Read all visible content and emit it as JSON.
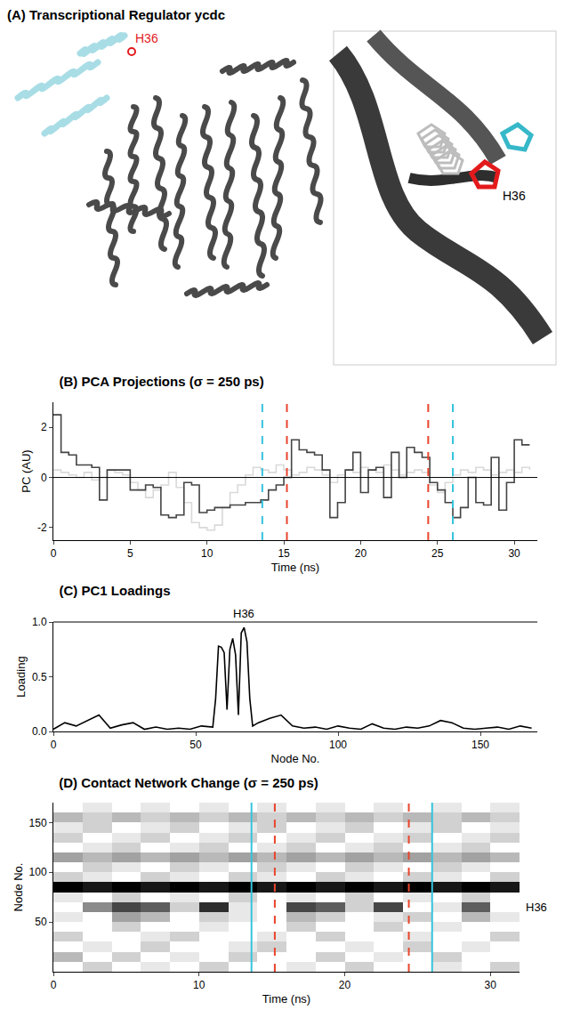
{
  "panel_a": {
    "title": "(A) Transcriptional Regulator ycdc",
    "labels": [
      "H36",
      "H36"
    ]
  },
  "chart_data": [
    {
      "type": "line",
      "title": "(B) PCA Projections (σ = 250 ps)",
      "x_label": "Time (ns)",
      "y_label": "PC (AU)",
      "xlim": [
        0,
        31.5
      ],
      "ylim": [
        -2.5,
        3
      ],
      "xticks": [
        0,
        5,
        10,
        15,
        20,
        25,
        30
      ],
      "yticks": [
        -2,
        0,
        2
      ],
      "x": [
        0,
        0.5,
        1,
        1.5,
        2,
        2.5,
        3,
        3.5,
        4,
        4.5,
        5,
        5.5,
        6,
        6.5,
        7,
        7.5,
        8,
        8.5,
        9,
        9.5,
        10,
        10.5,
        11,
        11.5,
        12,
        12.5,
        13,
        13.5,
        14,
        14.5,
        15,
        15.5,
        16,
        16.5,
        17,
        17.5,
        18,
        18.5,
        19,
        19.5,
        20,
        20.5,
        21,
        21.5,
        22,
        22.5,
        23,
        23.5,
        24,
        24.5,
        25,
        25.5,
        26,
        26.5,
        27,
        27.5,
        28,
        28.5,
        29,
        29.5,
        30,
        30.5,
        31
      ],
      "series": [
        {
          "color": "#d9d9d9",
          "line_style": "solid",
          "values": [
            0.3,
            0.2,
            0.1,
            0,
            0.2,
            -0.1,
            0,
            0.3,
            0.2,
            0.1,
            -0.2,
            -0.5,
            -0.8,
            -0.5,
            -0.3,
            0.2,
            -0.4,
            -1.0,
            -1.8,
            -2.0,
            -2.1,
            -1.9,
            -1.2,
            -0.6,
            -0.3,
            0.1,
            0.4,
            0.3,
            0.2,
            0.5,
            0.3,
            0.1,
            0.2,
            0.4,
            0.3,
            0.1,
            -0.2,
            0.1,
            0.3,
            0.2,
            0.4,
            0.3,
            0.2,
            0.5,
            0.3,
            0.1,
            0.2,
            0.3,
            0.2,
            -0.3,
            -0.6,
            -0.2,
            0.1,
            0.3,
            0.2,
            0.4,
            0.3,
            0.1,
            0.2,
            0.3,
            0.2,
            0.4,
            0.3
          ]
        },
        {
          "color": "#444444",
          "line_style": "solid",
          "values": [
            2.5,
            1.0,
            0.9,
            0.5,
            0.5,
            0.4,
            -0.9,
            0.3,
            0.3,
            0.3,
            -0.5,
            -0.5,
            -0.3,
            -0.4,
            -1.5,
            -1.6,
            -1.5,
            -0.2,
            -0.3,
            -1.4,
            -1.3,
            -1.2,
            -1.2,
            -1.1,
            -1.1,
            -1.0,
            -1.0,
            -0.9,
            -0.5,
            -0.3,
            0.0,
            1.5,
            1.1,
            1.0,
            0.9,
            0.3,
            -1.6,
            -1.0,
            0.3,
            1.0,
            -0.6,
            0.3,
            0.4,
            -0.8,
            1.0,
            0.0,
            1.2,
            1.0,
            0.8,
            -0.2,
            -0.5,
            -1.0,
            -1.6,
            -1.2,
            0.0,
            -1.0,
            -1.1,
            0.8,
            -1.3,
            -0.2,
            1.5,
            1.3,
            1.3
          ]
        }
      ],
      "vlines": [
        {
          "x": 13.6,
          "color": "#35c4dc",
          "line_style": "dash"
        },
        {
          "x": 15.2,
          "color": "#e8452c",
          "line_style": "dash"
        },
        {
          "x": 24.4,
          "color": "#e8452c",
          "line_style": "dash"
        },
        {
          "x": 26.0,
          "color": "#35c4dc",
          "line_style": "dash"
        }
      ],
      "grid": false,
      "legend": false
    },
    {
      "type": "line",
      "title": "(C) PC1 Loadings",
      "x_label": "Node No.",
      "y_label": "Loading",
      "xlim": [
        0,
        170
      ],
      "ylim": [
        0,
        1
      ],
      "xticks": [
        0,
        50,
        100,
        150
      ],
      "yticks": [
        {
          "value": 0,
          "label": "0.0"
        },
        {
          "value": 0.5,
          "label": "0.5"
        },
        {
          "value": 1,
          "label": "1.0"
        }
      ],
      "x": [
        0,
        4,
        8,
        12,
        16,
        20,
        24,
        28,
        32,
        36,
        40,
        44,
        48,
        52,
        56,
        57,
        58,
        59,
        60,
        61,
        62,
        63,
        64,
        65,
        66,
        67,
        68,
        69,
        70,
        72,
        76,
        80,
        84,
        88,
        92,
        96,
        100,
        104,
        108,
        112,
        116,
        120,
        124,
        128,
        132,
        136,
        140,
        144,
        148,
        152,
        156,
        160,
        164,
        168
      ],
      "values": [
        0.02,
        0.08,
        0.05,
        0.1,
        0.15,
        0.03,
        0.06,
        0.08,
        0.02,
        0.04,
        0.02,
        0.03,
        0.02,
        0.05,
        0.04,
        0.3,
        0.78,
        0.77,
        0.72,
        0.2,
        0.75,
        0.85,
        0.7,
        0.15,
        0.9,
        0.95,
        0.82,
        0.3,
        0.05,
        0.08,
        0.12,
        0.15,
        0.05,
        0.03,
        0.04,
        0.02,
        0.05,
        0.03,
        0.02,
        0.07,
        0.03,
        0.02,
        0.04,
        0.03,
        0.05,
        0.1,
        0.08,
        0.03,
        0.02,
        0.03,
        0.04,
        0.02,
        0.05,
        0.03
      ],
      "color": "#000000",
      "annotations": [
        {
          "text": "H36",
          "x": 67
        }
      ],
      "grid": false,
      "legend": false
    },
    {
      "type": "heatmap",
      "title": "(D) Contact Network Change (σ = 250 ps)",
      "x_label": "Time (ns)",
      "y_label": "Node No.",
      "xlim": [
        0,
        32
      ],
      "ylim": [
        0,
        170
      ],
      "xticks": [
        0,
        10,
        20,
        30
      ],
      "yticks": [
        50,
        100,
        150
      ],
      "x": [
        1,
        3,
        5,
        7,
        9,
        11,
        13,
        15,
        17,
        19,
        21,
        23,
        25,
        27,
        29,
        31
      ],
      "y": [
        5,
        15,
        25,
        35,
        45,
        55,
        65,
        75,
        85,
        95,
        105,
        115,
        125,
        135,
        145,
        155,
        165
      ],
      "z": [
        [
          0.3,
          0.4,
          0.3,
          0.35,
          0.3,
          0.4,
          0.3,
          0.3,
          0.35,
          0.3,
          0.4,
          0.3,
          0.3,
          0.35,
          0.3,
          0.4
        ],
        [
          0.45,
          0.3,
          0.4,
          0.3,
          0.35,
          0.3,
          0.4,
          0.3,
          0.3,
          0.4,
          0.3,
          0.35,
          0.3,
          0.4,
          0.3,
          0.3
        ],
        [
          0.3,
          0.35,
          0.3,
          0.4,
          0.3,
          0.3,
          0.35,
          0.4,
          0.3,
          0.3,
          0.35,
          0.3,
          0.4,
          0.3,
          0.35,
          0.3
        ],
        [
          0.4,
          0.3,
          0.3,
          0.35,
          0.4,
          0.3,
          0.3,
          0.35,
          0.3,
          0.4,
          0.3,
          0.3,
          0.35,
          0.3,
          0.3,
          0.4
        ],
        [
          0.3,
          0.3,
          0.4,
          0.3,
          0.3,
          0.35,
          0.3,
          0.3,
          0.4,
          0.3,
          0.3,
          0.4,
          0.3,
          0.35,
          0.3,
          0.3
        ],
        [
          0.35,
          0.3,
          0.5,
          0.45,
          0.3,
          0.4,
          0.35,
          0.3,
          0.45,
          0.4,
          0.3,
          0.35,
          0.4,
          0.3,
          0.45,
          0.35
        ],
        [
          0.3,
          0.55,
          0.7,
          0.65,
          0.4,
          0.75,
          0.35,
          0.3,
          0.7,
          0.65,
          0.4,
          0.7,
          0.3,
          0.35,
          0.65,
          0.3
        ],
        [
          0.35,
          0.3,
          0.4,
          0.3,
          0.35,
          0.3,
          0.4,
          0.3,
          0.35,
          0.3,
          0.4,
          0.3,
          0.35,
          0.3,
          0.4,
          0.3
        ],
        [
          0.85,
          0.8,
          0.85,
          0.8,
          0.85,
          0.8,
          0.85,
          0.8,
          0.85,
          0.8,
          0.85,
          0.8,
          0.85,
          0.8,
          0.85,
          0.8
        ],
        [
          0.4,
          0.35,
          0.3,
          0.4,
          0.35,
          0.3,
          0.4,
          0.35,
          0.3,
          0.4,
          0.35,
          0.3,
          0.4,
          0.35,
          0.3,
          0.4
        ],
        [
          0.3,
          0.4,
          0.35,
          0.3,
          0.4,
          0.35,
          0.3,
          0.4,
          0.35,
          0.3,
          0.4,
          0.35,
          0.3,
          0.4,
          0.35,
          0.3
        ],
        [
          0.5,
          0.45,
          0.5,
          0.45,
          0.5,
          0.45,
          0.5,
          0.45,
          0.5,
          0.45,
          0.5,
          0.45,
          0.5,
          0.45,
          0.5,
          0.45
        ],
        [
          0.3,
          0.35,
          0.4,
          0.3,
          0.35,
          0.4,
          0.3,
          0.35,
          0.4,
          0.3,
          0.35,
          0.4,
          0.3,
          0.35,
          0.4,
          0.3
        ],
        [
          0.4,
          0.3,
          0.35,
          0.4,
          0.3,
          0.35,
          0.4,
          0.3,
          0.35,
          0.4,
          0.3,
          0.35,
          0.4,
          0.3,
          0.35,
          0.4
        ],
        [
          0.35,
          0.4,
          0.3,
          0.35,
          0.4,
          0.3,
          0.35,
          0.4,
          0.3,
          0.35,
          0.4,
          0.3,
          0.35,
          0.4,
          0.3,
          0.35
        ],
        [
          0.45,
          0.4,
          0.45,
          0.4,
          0.45,
          0.4,
          0.45,
          0.4,
          0.45,
          0.4,
          0.45,
          0.4,
          0.45,
          0.4,
          0.45,
          0.4
        ],
        [
          0.3,
          0.35,
          0.3,
          0.35,
          0.3,
          0.35,
          0.3,
          0.35,
          0.3,
          0.35,
          0.3,
          0.35,
          0.3,
          0.35,
          0.3,
          0.35
        ]
      ],
      "vlines": [
        {
          "x": 13.6,
          "color": "#35c4dc",
          "line_style": "solid"
        },
        {
          "x": 15.2,
          "color": "#e8452c",
          "line_style": "dash"
        },
        {
          "x": 24.4,
          "color": "#e8452c",
          "line_style": "dash"
        },
        {
          "x": 26.0,
          "color": "#35c4dc",
          "line_style": "solid"
        }
      ],
      "annotations": [
        {
          "text": "H36",
          "y": 65
        }
      ],
      "grid": false,
      "legend": false
    }
  ]
}
